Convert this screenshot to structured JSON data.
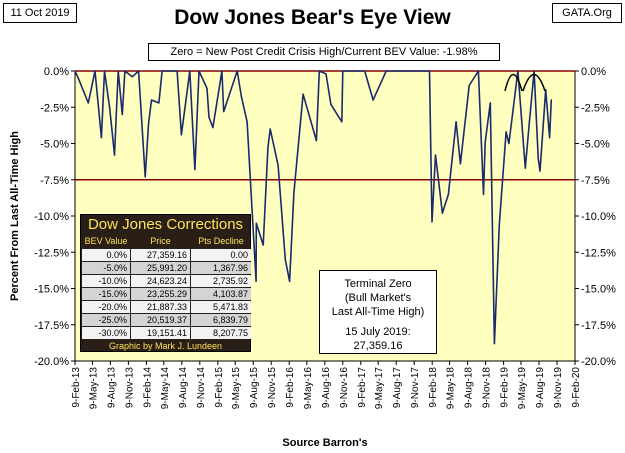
{
  "date_label": "11 Oct 2019",
  "source_tag": "GATA.Org",
  "chart_data": {
    "type": "line",
    "title": "Dow Jones Bear's Eye View",
    "subtitle": "Zero = New Post Credit Crisis High/Current BEV Value:  -1.98%",
    "ylabel": "Percent From Last All-Time High",
    "xlabel": "Source Barron's",
    "ylim": [
      -20,
      0
    ],
    "xlim": [
      "2013-02-09",
      "2020-02-09"
    ],
    "y_ticks": [
      "0.0%",
      "-2.5%",
      "-5.0%",
      "-7.5%",
      "-10.0%",
      "-12.5%",
      "-15.0%",
      "-17.5%",
      "-20.0%"
    ],
    "y_ticks_right": [
      "0.0%",
      "-2.5%",
      "-5.0%",
      "-7.5%",
      "-10.0%",
      "-12.5%",
      "-15.0%",
      "-17.5%",
      "-20.0%"
    ],
    "x_ticks": [
      "9-Feb-13",
      "9-May-13",
      "9-Aug-13",
      "9-Nov-13",
      "9-Feb-14",
      "9-May-14",
      "9-Aug-14",
      "9-Nov-14",
      "9-Feb-15",
      "9-May-15",
      "9-Aug-15",
      "9-Nov-15",
      "9-Feb-16",
      "9-May-16",
      "9-Aug-16",
      "9-Nov-16",
      "9-Feb-17",
      "9-May-17",
      "9-Aug-17",
      "9-Nov-17",
      "9-Feb-18",
      "9-May-18",
      "9-Aug-18",
      "9-Nov-18",
      "9-Feb-19",
      "9-May-19",
      "9-Aug-19",
      "9-Nov-19",
      "9-Feb-20"
    ],
    "reference_lines": [
      0,
      -7.5
    ],
    "grid": false,
    "colors": {
      "plot_bg": "#ffffc0",
      "line": "#1a2a6e",
      "ref_line": "#8b0000"
    },
    "series": [
      {
        "x": [
          "2013-02-09",
          "2013-03-01",
          "2013-04-18",
          "2013-05-22",
          "2013-06-24",
          "2013-07-10",
          "2013-08-05",
          "2013-08-30",
          "2013-09-18",
          "2013-10-09",
          "2013-10-22",
          "2013-11-29",
          "2013-12-31",
          "2014-02-03",
          "2014-02-20",
          "2014-03-07",
          "2014-04-14",
          "2014-04-30",
          "2014-06-20",
          "2014-07-16",
          "2014-08-07",
          "2014-09-19",
          "2014-10-15",
          "2014-11-05",
          "2014-12-16",
          "2014-12-26",
          "2015-01-15",
          "2015-03-02",
          "2015-03-11",
          "2015-05-19",
          "2015-06-10",
          "2015-07-09",
          "2015-08-24",
          "2015-08-25",
          "2015-09-29",
          "2015-10-23",
          "2015-11-04",
          "2015-12-14",
          "2016-01-20",
          "2016-02-11",
          "2016-03-04",
          "2016-04-20",
          "2016-06-27",
          "2016-07-12",
          "2016-08-15",
          "2016-09-09",
          "2016-11-04",
          "2016-11-09",
          "2016-12-20",
          "2017-01-26",
          "2017-03-01",
          "2017-04-13",
          "2017-06-19",
          "2017-08-10",
          "2017-09-20",
          "2017-11-08",
          "2018-01-26",
          "2018-02-08",
          "2018-02-26",
          "2018-04-02",
          "2018-05-03",
          "2018-06-11",
          "2018-07-03",
          "2018-08-17",
          "2018-10-03",
          "2018-10-29",
          "2018-11-07",
          "2018-12-03",
          "2018-12-24",
          "2019-01-18",
          "2019-02-22",
          "2019-03-08",
          "2019-04-23",
          "2019-05-31",
          "2019-06-21",
          "2019-07-15",
          "2019-08-05",
          "2019-08-14",
          "2019-09-12",
          "2019-10-02",
          "2019-10-11"
        ],
        "y": [
          0,
          -0.6,
          -2.2,
          0,
          -4.6,
          0,
          -2.5,
          -5.8,
          0,
          -3.0,
          0,
          -0.4,
          0,
          -7.3,
          -3.6,
          -2.0,
          -2.2,
          0,
          0,
          0,
          -4.4,
          0,
          -6.8,
          0,
          -1.2,
          -3.2,
          -3.9,
          0,
          -2.8,
          0,
          -1.8,
          -3.5,
          -14.5,
          -10.5,
          -12.0,
          -5.3,
          -4.0,
          -6.5,
          -13.0,
          -14.5,
          -8.4,
          -1.6,
          -4.8,
          0,
          -0.2,
          -2.3,
          -3.5,
          0,
          0,
          0,
          0,
          -2.0,
          0,
          0,
          0,
          0,
          0,
          -10.4,
          -5.8,
          -9.8,
          -8.5,
          -3.5,
          -6.4,
          -1.0,
          0,
          -8.5,
          -4.9,
          -2.2,
          -18.8,
          -10.6,
          -4.2,
          -5.0,
          0,
          -6.7,
          -3.5,
          0,
          -6.0,
          -6.9,
          -1.3,
          -4.6,
          -1.98
        ]
      }
    ]
  },
  "corrections_table": {
    "title": "Dow Jones Corrections",
    "headers": [
      "BEV Value",
      "Price",
      "Pts Decline"
    ],
    "rows": [
      [
        "0.0%",
        "27,359.16",
        "0.00"
      ],
      [
        "-5.0%",
        "25,991.20",
        "1,367.96"
      ],
      [
        "-10.0%",
        "24,623.24",
        "2,735.92"
      ],
      [
        "-15.0%",
        "23,255.29",
        "4,103.87"
      ],
      [
        "-20.0%",
        "21,887.33",
        "5,471.83"
      ],
      [
        "-25.0%",
        "20,519.37",
        "6,839.79"
      ],
      [
        "-30.0%",
        "19,151.41",
        "8,207.75"
      ]
    ],
    "credit": "Graphic by Mark J. Lundeen"
  },
  "terminal_box": {
    "line1": "Terminal Zero",
    "line2": "(Bull Market's",
    "line3": "Last All-Time High)",
    "line4": "15 July 2019:",
    "line5": "27,359.16"
  }
}
